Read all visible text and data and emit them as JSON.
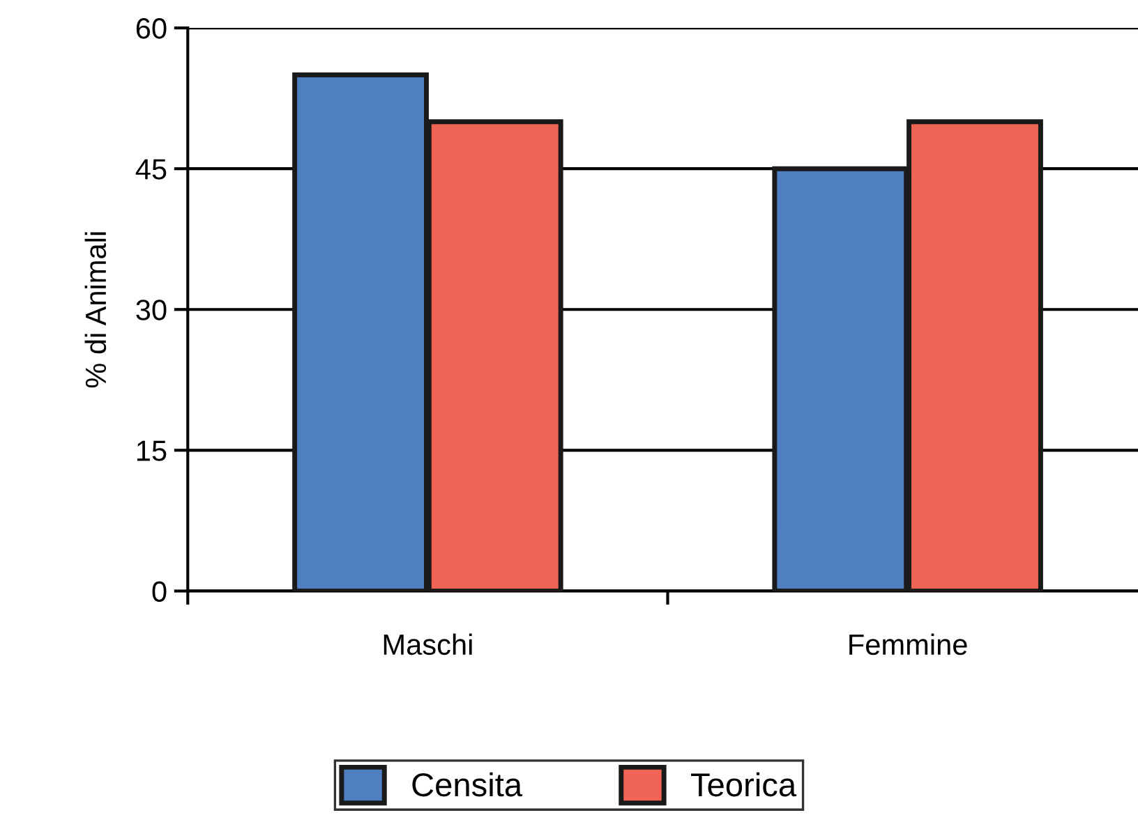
{
  "chart_data": {
    "type": "bar",
    "ylabel": "% di Animali",
    "categories": [
      "Maschi",
      "Femmine"
    ],
    "series": [
      {
        "name": "Censita",
        "color": "#4f7ec1",
        "values": [
          55,
          45
        ]
      },
      {
        "name": "Teorica",
        "color": "#f06455",
        "values": [
          50,
          50
        ]
      }
    ],
    "ylim": [
      0,
      60
    ],
    "yticks": [
      0,
      15,
      30,
      45,
      60
    ],
    "grid": "y",
    "legend": "bottom"
  }
}
